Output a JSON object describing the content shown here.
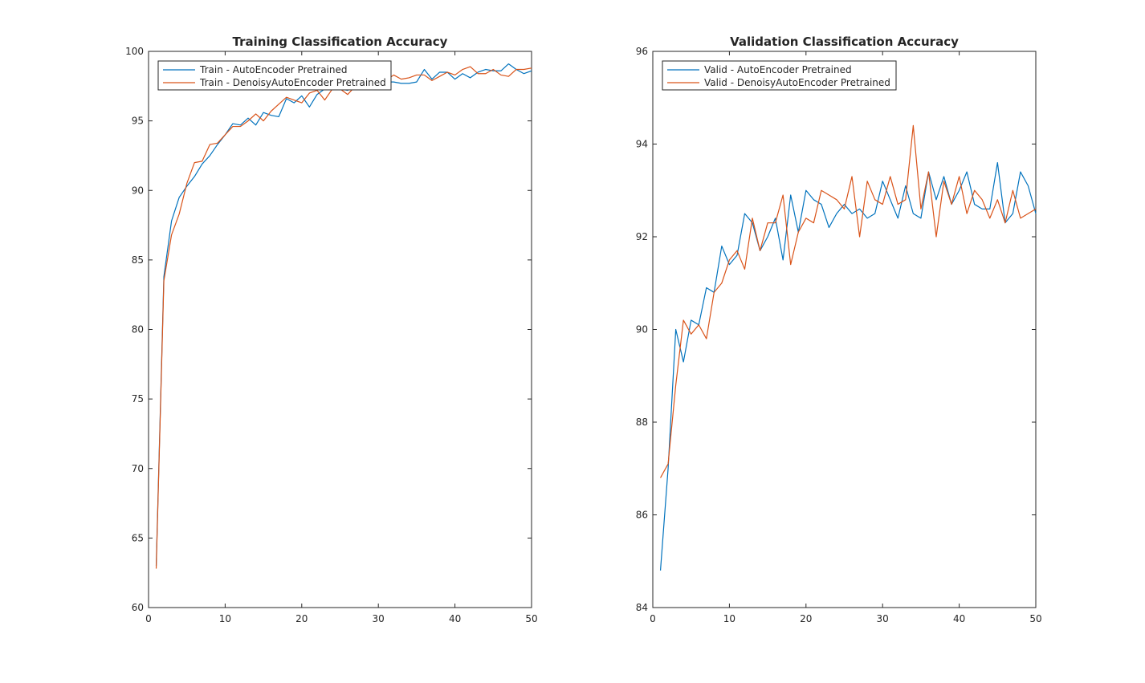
{
  "chart_data": [
    {
      "type": "line",
      "title": "Training Classification Accuracy",
      "xlabel": "",
      "ylabel": "",
      "xlim": [
        0,
        50
      ],
      "ylim": [
        60,
        100
      ],
      "xticks": [
        0,
        10,
        20,
        30,
        40,
        50
      ],
      "yticks": [
        60,
        65,
        70,
        75,
        80,
        85,
        90,
        95,
        100
      ],
      "grid": false,
      "legend_position": "top-left",
      "series": [
        {
          "name": "Train - AutoEncoder Pretrained",
          "color": "#0072BD",
          "x": [
            1,
            2,
            3,
            4,
            5,
            6,
            7,
            8,
            9,
            10,
            11,
            12,
            13,
            14,
            15,
            16,
            17,
            18,
            19,
            20,
            21,
            22,
            23,
            24,
            25,
            26,
            27,
            28,
            29,
            30,
            31,
            32,
            33,
            34,
            35,
            36,
            37,
            38,
            39,
            40,
            41,
            42,
            43,
            44,
            45,
            46,
            47,
            48,
            49,
            50
          ],
          "y": [
            63,
            83.8,
            87.8,
            89.5,
            90.3,
            91.0,
            91.9,
            92.5,
            93.3,
            94.0,
            94.8,
            94.7,
            95.2,
            94.7,
            95.6,
            95.4,
            95.3,
            96.6,
            96.3,
            96.8,
            96.0,
            96.9,
            97.3,
            97.4,
            97.3,
            97.2,
            97.6,
            97.8,
            97.9,
            97.8,
            97.8,
            97.8,
            97.7,
            97.7,
            97.8,
            98.7,
            98.0,
            98.5,
            98.5,
            98.0,
            98.4,
            98.1,
            98.5,
            98.7,
            98.6,
            98.6,
            99.1,
            98.7,
            98.4,
            98.6
          ]
        },
        {
          "name": "Train - DenoisyAutoEncoder Pretrained",
          "color": "#D95319",
          "x": [
            1,
            2,
            3,
            4,
            5,
            6,
            7,
            8,
            9,
            10,
            11,
            12,
            13,
            14,
            15,
            16,
            17,
            18,
            19,
            20,
            21,
            22,
            23,
            24,
            25,
            26,
            27,
            28,
            29,
            30,
            31,
            32,
            33,
            34,
            35,
            36,
            37,
            38,
            39,
            40,
            41,
            42,
            43,
            44,
            45,
            46,
            47,
            48,
            49,
            50
          ],
          "y": [
            62.8,
            83.5,
            86.8,
            88.3,
            90.5,
            92.0,
            92.1,
            93.3,
            93.4,
            94.0,
            94.6,
            94.6,
            95.0,
            95.5,
            95.0,
            95.7,
            96.2,
            96.7,
            96.5,
            96.3,
            97.0,
            97.2,
            96.5,
            97.3,
            97.3,
            96.9,
            97.5,
            97.6,
            97.8,
            97.5,
            97.9,
            98.3,
            98.0,
            98.1,
            98.3,
            98.3,
            97.9,
            98.2,
            98.5,
            98.3,
            98.7,
            98.9,
            98.4,
            98.4,
            98.7,
            98.3,
            98.2,
            98.7,
            98.7,
            98.8
          ]
        }
      ]
    },
    {
      "type": "line",
      "title": "Validation Classification Accuracy",
      "xlabel": "",
      "ylabel": "",
      "xlim": [
        0,
        50
      ],
      "ylim": [
        84,
        96
      ],
      "xticks": [
        0,
        10,
        20,
        30,
        40,
        50
      ],
      "yticks": [
        84,
        86,
        88,
        90,
        92,
        94,
        96
      ],
      "grid": false,
      "legend_position": "top-left",
      "series": [
        {
          "name": "Valid - AutoEncoder Pretrained",
          "color": "#0072BD",
          "x": [
            1,
            2,
            3,
            4,
            5,
            6,
            7,
            8,
            9,
            10,
            11,
            12,
            13,
            14,
            15,
            16,
            17,
            18,
            19,
            20,
            21,
            22,
            23,
            24,
            25,
            26,
            27,
            28,
            29,
            30,
            31,
            32,
            33,
            34,
            35,
            36,
            37,
            38,
            39,
            40,
            41,
            42,
            43,
            44,
            45,
            46,
            47,
            48,
            49,
            50
          ],
          "y": [
            84.8,
            87.0,
            90.0,
            89.3,
            90.2,
            90.1,
            90.9,
            90.8,
            91.8,
            91.4,
            91.6,
            92.5,
            92.3,
            91.7,
            92.0,
            92.4,
            91.5,
            92.9,
            92.1,
            93.0,
            92.8,
            92.7,
            92.2,
            92.5,
            92.7,
            92.5,
            92.6,
            92.4,
            92.5,
            93.2,
            92.8,
            92.4,
            93.1,
            92.5,
            92.4,
            93.4,
            92.8,
            93.3,
            92.7,
            93.0,
            93.4,
            92.7,
            92.6,
            92.6,
            93.6,
            92.3,
            92.5,
            93.4,
            93.1,
            92.5
          ]
        },
        {
          "name": "Valid - DenoisyAutoEncoder Pretrained",
          "color": "#D95319",
          "x": [
            1,
            2,
            3,
            4,
            5,
            6,
            7,
            8,
            9,
            10,
            11,
            12,
            13,
            14,
            15,
            16,
            17,
            18,
            19,
            20,
            21,
            22,
            23,
            24,
            25,
            26,
            27,
            28,
            29,
            30,
            31,
            32,
            33,
            34,
            35,
            36,
            37,
            38,
            39,
            40,
            41,
            42,
            43,
            44,
            45,
            46,
            47,
            48,
            49,
            50
          ],
          "y": [
            86.8,
            87.1,
            88.8,
            90.2,
            89.9,
            90.1,
            89.8,
            90.8,
            91.0,
            91.5,
            91.7,
            91.3,
            92.4,
            91.7,
            92.3,
            92.3,
            92.9,
            91.4,
            92.1,
            92.4,
            92.3,
            93.0,
            92.9,
            92.8,
            92.6,
            93.3,
            92.0,
            93.2,
            92.8,
            92.7,
            93.3,
            92.7,
            92.8,
            94.4,
            92.6,
            93.4,
            92.0,
            93.2,
            92.7,
            93.3,
            92.5,
            93.0,
            92.8,
            92.4,
            92.8,
            92.3,
            93.0,
            92.4,
            92.5,
            92.6
          ]
        }
      ]
    }
  ]
}
